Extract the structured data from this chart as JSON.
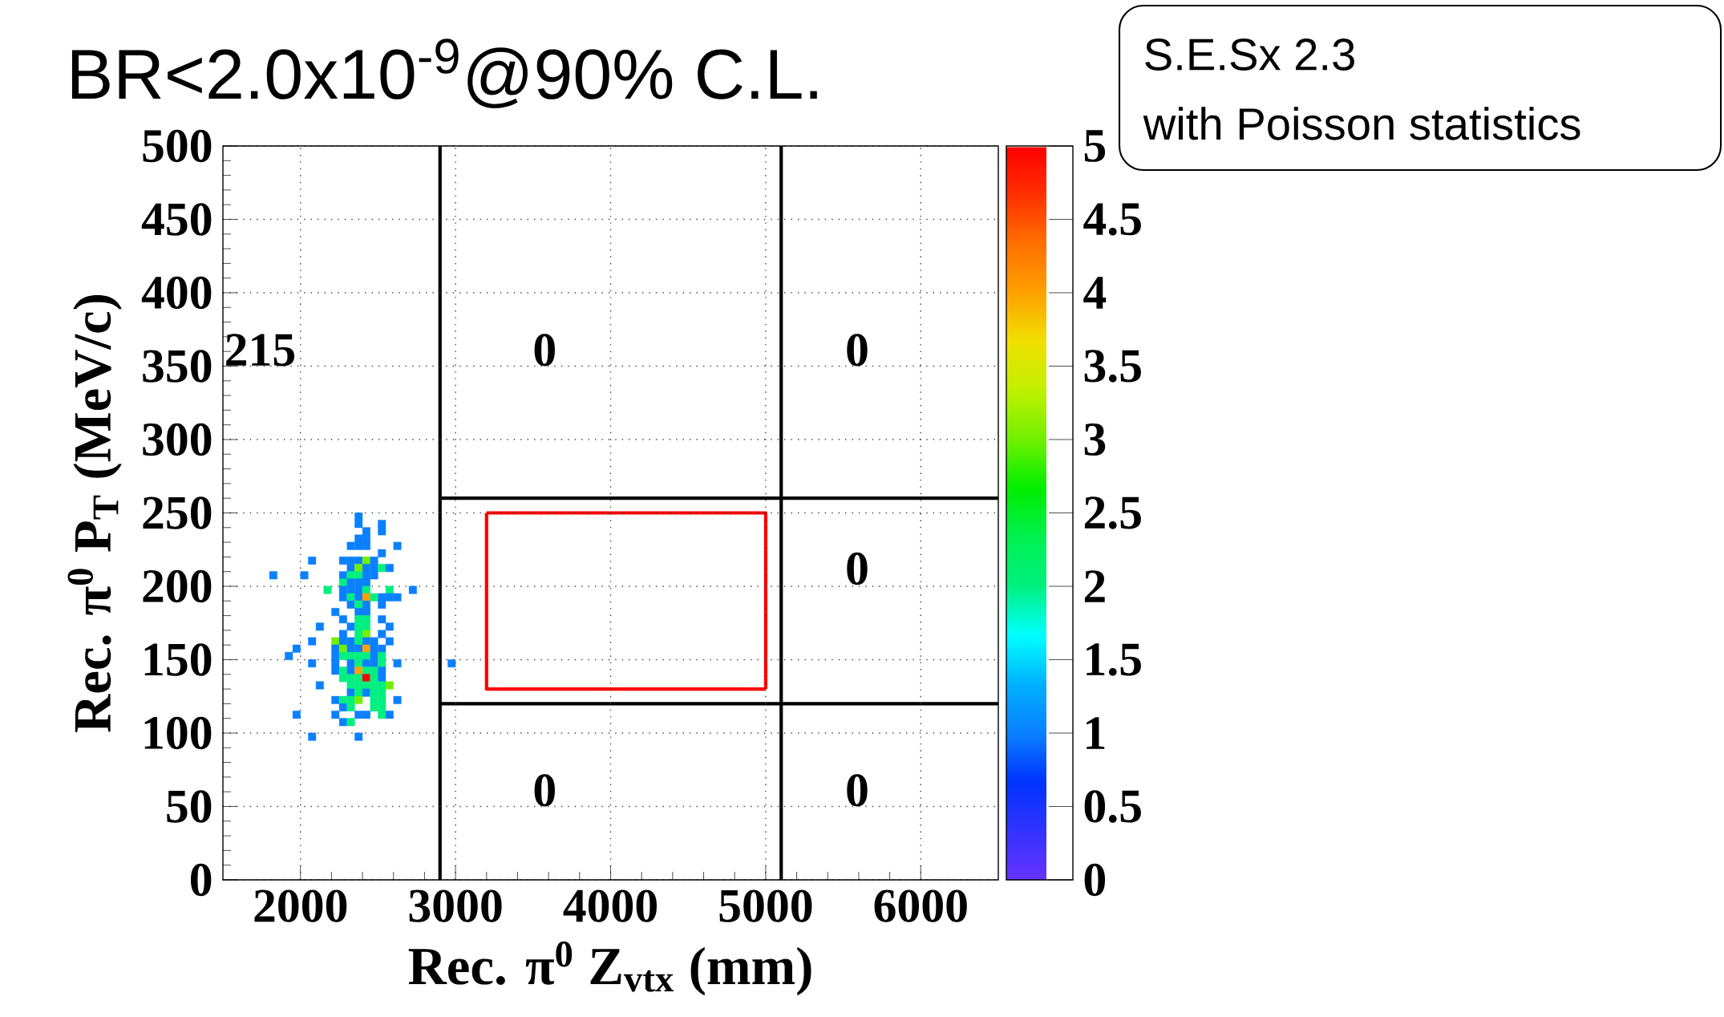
{
  "chart_data": {
    "type": "scatter",
    "title": "BR<2.0x10$^{-9}$@90% C.L.",
    "xlabel": "Rec.  π$^{0}$ Z$_{vtx}$ (mm)",
    "ylabel": "Rec.  π$^{0}$ P$_{T}$ (MeV/c)",
    "xlim": [
      1500,
      6500
    ],
    "ylim": [
      0,
      500
    ],
    "xticks": [
      2000,
      3000,
      4000,
      5000,
      6000
    ],
    "yticks": [
      0,
      50,
      100,
      150,
      200,
      250,
      300,
      350,
      400,
      450,
      500
    ],
    "grid": true,
    "clim": [
      0,
      5
    ],
    "cticks": [
      0,
      0.5,
      1,
      1.5,
      2,
      2.5,
      3,
      3.5,
      4,
      4.5,
      5
    ],
    "ref_lines": [
      {
        "axis": "x",
        "value": 2900,
        "color": "#000000"
      },
      {
        "axis": "x",
        "value": 5100,
        "color": "#000000"
      }
    ],
    "annotations": [
      "S.E.Sx 2.3",
      "with Poisson statistics",
      "215",
      "0",
      "0",
      "0",
      "0",
      "0"
    ],
    "series": [
      {
        "marker": "square",
        "colors": [
          "#0a80ff",
          "#0a80ff",
          "#0a80ff",
          "#0a80ff",
          "#0a80ff",
          "#0a80ff",
          "#0a80ff",
          "#0a80ff",
          "#0a80ff",
          "#0a80ff",
          "#0a80ff",
          "#0a80ff",
          "#0a80ff",
          "#0a80ff",
          "#0a80ff",
          "#0a80ff",
          "#70f000",
          "#0a80ff",
          "#0a80ff",
          "#70f000",
          "#0a80ff",
          "#0a80ff",
          "#00f080",
          "#0a80ff",
          "#0a80ff",
          "#0a80ff",
          "#0a80ff",
          "#00f080",
          "#00f080",
          "#0a80ff",
          "#0a80ff",
          "#00f080",
          "#0a80ff",
          "#0a80ff",
          "#0a80ff",
          "#00f080",
          "#0a80ff",
          "#0a80ff",
          "#0a80ff",
          "#00f080",
          "#00f080",
          "#0a80ff",
          "#0a80ff",
          "#00f080",
          "#0a80ff",
          "#ffa000",
          "#00f080",
          "#0a80ff",
          "#0a80ff",
          "#0a80ff",
          "#0a80ff",
          "#00f080",
          "#0a80ff",
          "#0a80ff",
          "#0a80ff",
          "#0a80ff",
          "#0a80ff",
          "#0a80ff",
          "#00f080",
          "#00f080",
          "#0a80ff",
          "#0a80ff",
          "#0a80ff",
          "#00f080",
          "#00f080",
          "#0a80ff",
          "#0a80ff",
          "#00f080",
          "#70f000",
          "#0a80ff",
          "#0a80ff",
          "#70f000",
          "#0a80ff",
          "#0a80ff",
          "#00f080",
          "#0a80ff",
          "#0a80ff",
          "#0a80ff",
          "#0a80ff",
          "#0a80ff",
          "#70f000",
          "#0a80ff",
          "#0a80ff",
          "#ffa000",
          "#0a80ff",
          "#0a80ff",
          "#0a80ff",
          "#0a80ff",
          "#00f080",
          "#00f080",
          "#00f080",
          "#00f080",
          "#0a80ff",
          "#00f080",
          "#0a80ff",
          "#0a80ff",
          "#0a80ff",
          "#00f080",
          "#0a80ff",
          "#0a80ff",
          "#00f080",
          "#0a80ff",
          "#0a80ff",
          "#0a80ff",
          "#00f080",
          "#0a80ff",
          "#ffa000",
          "#00f080",
          "#00f080",
          "#0a80ff",
          "#00f080",
          "#00f080",
          "#00f080",
          "#ff0000",
          "#00f080",
          "#0a80ff",
          "#0a80ff",
          "#00f080",
          "#00f080",
          "#00f080",
          "#00f080",
          "#00f080",
          "#70f000",
          "#0a80ff",
          "#00f080",
          "#0a80ff",
          "#00f080",
          "#00f080",
          "#0a80ff",
          "#00f080",
          "#00f080",
          "#70f000",
          "#00f080",
          "#00f080",
          "#0a80ff",
          "#0a80ff",
          "#00f080",
          "#00f080",
          "#00f080",
          "#0a80ff",
          "#0a80ff",
          "#0a80ff",
          "#0a80ff",
          "#00f080",
          "#0a80ff",
          "#0a80ff",
          "#00f080",
          "#0a80ff",
          "#0a80ff"
        ],
        "x": [
          2375,
          2375,
          2525,
          2425,
          2525,
          2375,
          2425,
          2325,
          2375,
          2425,
          2625,
          2525,
          2075,
          2275,
          2325,
          2375,
          2425,
          2475,
          2325,
          2375,
          2425,
          2475,
          2525,
          2575,
          1825,
          2025,
          2275,
          2325,
          2375,
          2425,
          2475,
          2275,
          2325,
          2375,
          2425,
          2175,
          2275,
          2325,
          2375,
          2425,
          2575,
          2725,
          2275,
          2325,
          2375,
          2425,
          2475,
          2525,
          2575,
          2625,
          2325,
          2375,
          2425,
          2525,
          2225,
          2375,
          2425,
          2275,
          2375,
          2425,
          2525,
          2125,
          2325,
          2375,
          2425,
          2575,
          2275,
          2375,
          2425,
          2525,
          2075,
          2225,
          2275,
          2325,
          2375,
          2425,
          2475,
          2575,
          1975,
          2225,
          2275,
          2325,
          2375,
          2425,
          2475,
          2525,
          1925,
          2225,
          2275,
          2325,
          2375,
          2425,
          2475,
          2525,
          2075,
          2225,
          2325,
          2375,
          2425,
          2475,
          2525,
          2625,
          2975,
          2225,
          2275,
          2325,
          2375,
          2425,
          2475,
          2525,
          2275,
          2325,
          2375,
          2425,
          2475,
          2525,
          2125,
          2325,
          2375,
          2425,
          2475,
          2525,
          2575,
          2325,
          2375,
          2425,
          2475,
          2525,
          2225,
          2275,
          2325,
          2375,
          2475,
          2525,
          2625,
          2275,
          2325,
          2475,
          2525,
          1975,
          2225,
          2375,
          2425,
          2525,
          2575,
          2275,
          2325,
          2075,
          2375
        ],
        "values": [
          247.5,
          242.5,
          242.5,
          237.5,
          237.5,
          232.5,
          232.5,
          227.5,
          227.5,
          227.5,
          227.5,
          222.5,
          217.5,
          217.5,
          217.5,
          217.5,
          217.5,
          217.5,
          212.5,
          212.5,
          212.5,
          212.5,
          212.5,
          212.5,
          207.5,
          207.5,
          207.5,
          207.5,
          207.5,
          207.5,
          207.5,
          202.5,
          202.5,
          202.5,
          202.5,
          197.5,
          197.5,
          197.5,
          197.5,
          197.5,
          197.5,
          197.5,
          192.5,
          192.5,
          192.5,
          192.5,
          192.5,
          192.5,
          192.5,
          192.5,
          187.5,
          187.5,
          187.5,
          187.5,
          182.5,
          182.5,
          182.5,
          177.5,
          177.5,
          177.5,
          177.5,
          172.5,
          172.5,
          172.5,
          172.5,
          172.5,
          167.5,
          167.5,
          167.5,
          167.5,
          162.5,
          162.5,
          162.5,
          162.5,
          162.5,
          162.5,
          162.5,
          162.5,
          157.5,
          157.5,
          157.5,
          157.5,
          157.5,
          157.5,
          157.5,
          157.5,
          152.5,
          152.5,
          152.5,
          152.5,
          152.5,
          152.5,
          152.5,
          152.5,
          147.5,
          147.5,
          147.5,
          147.5,
          147.5,
          147.5,
          147.5,
          147.5,
          147.5,
          142.5,
          142.5,
          142.5,
          142.5,
          142.5,
          142.5,
          142.5,
          137.5,
          137.5,
          137.5,
          137.5,
          137.5,
          137.5,
          132.5,
          132.5,
          132.5,
          132.5,
          132.5,
          132.5,
          132.5,
          127.5,
          127.5,
          127.5,
          127.5,
          127.5,
          122.5,
          122.5,
          122.5,
          122.5,
          122.5,
          122.5,
          122.5,
          117.5,
          117.5,
          117.5,
          117.5,
          112.5,
          112.5,
          112.5,
          112.5,
          112.5,
          112.5,
          107.5,
          107.5,
          97.5,
          97.5
        ],
        "cvalues": [
          1,
          1,
          1,
          1,
          1,
          1,
          1,
          1,
          1,
          1,
          1,
          1,
          1,
          1,
          1,
          1,
          3,
          1,
          1,
          3,
          1,
          1,
          2,
          1,
          1,
          1,
          1,
          2,
          2,
          1,
          1,
          2,
          1,
          1,
          1,
          2,
          1,
          1,
          1,
          2,
          2,
          1,
          1,
          2,
          1,
          4,
          2,
          1,
          1,
          1,
          1,
          2,
          1,
          1,
          1,
          1,
          1,
          1,
          2,
          2,
          1,
          1,
          1,
          2,
          2,
          1,
          1,
          2,
          3,
          1,
          1,
          3,
          1,
          1,
          2,
          1,
          1,
          1,
          1,
          1,
          3,
          1,
          1,
          4,
          1,
          1,
          1,
          1,
          2,
          2,
          2,
          2,
          1,
          2,
          1,
          1,
          1,
          2,
          1,
          1,
          2,
          1,
          1,
          1,
          2,
          1,
          4,
          2,
          2,
          1,
          2,
          2,
          2,
          5,
          2,
          1,
          1,
          2,
          2,
          2,
          2,
          2,
          3,
          1,
          2,
          1,
          2,
          2,
          1,
          2,
          2,
          3,
          2,
          2,
          1,
          1,
          2,
          2,
          2,
          1,
          1,
          1,
          1,
          2,
          1,
          1,
          2,
          1,
          1
        ]
      },
      {
        "type": "line",
        "color": "#000000",
        "x": [
          2900,
          6500
        ],
        "values": [
          260,
          260
        ]
      },
      {
        "type": "line",
        "color": "#000000",
        "x": [
          2900,
          6500
        ],
        "values": [
          120,
          120
        ]
      },
      {
        "type": "line",
        "color": "#ff0000",
        "x": [
          3200,
          5000,
          5000
        ],
        "values": [
          250,
          250,
          130
        ]
      },
      {
        "type": "line",
        "color": "#ff0000",
        "x": [
          5000,
          3200,
          3200
        ],
        "values": [
          130,
          130,
          250
        ]
      }
    ]
  }
}
